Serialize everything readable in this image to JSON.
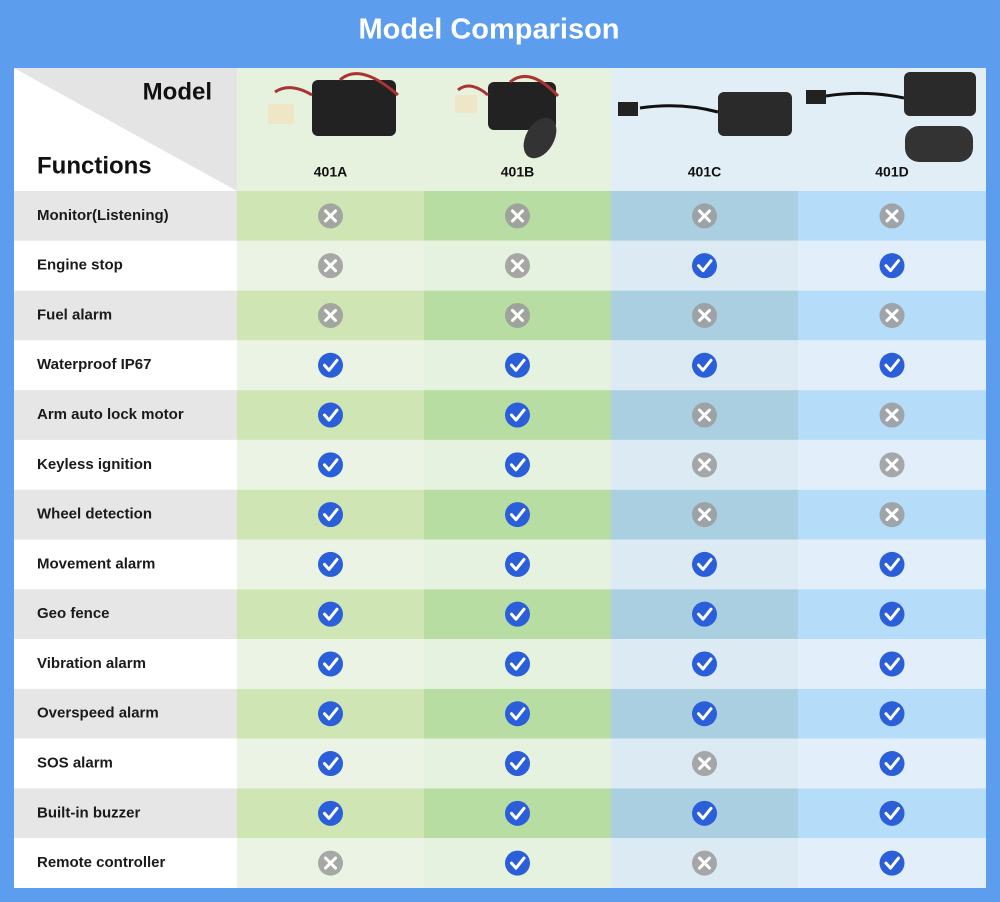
{
  "title": "Model Comparison",
  "header": {
    "model": "Model",
    "functions": "Functions"
  },
  "models": [
    "401A",
    "401B",
    "401C",
    "401D"
  ],
  "rows": [
    {
      "name": "Monitor(Listening)",
      "values": [
        false,
        false,
        false,
        false
      ]
    },
    {
      "name": "Engine stop",
      "values": [
        false,
        false,
        true,
        true
      ]
    },
    {
      "name": "Fuel alarm",
      "values": [
        false,
        false,
        false,
        false
      ]
    },
    {
      "name": "Waterproof IP67",
      "values": [
        true,
        true,
        true,
        true
      ]
    },
    {
      "name": "Arm auto lock motor",
      "values": [
        true,
        true,
        false,
        false
      ]
    },
    {
      "name": "Keyless ignition",
      "values": [
        true,
        true,
        false,
        false
      ]
    },
    {
      "name": "Wheel detection",
      "values": [
        true,
        true,
        false,
        false
      ]
    },
    {
      "name": "Movement alarm",
      "values": [
        true,
        true,
        true,
        true
      ]
    },
    {
      "name": "Geo fence",
      "values": [
        true,
        true,
        true,
        true
      ]
    },
    {
      "name": "Vibration alarm",
      "values": [
        true,
        true,
        true,
        true
      ]
    },
    {
      "name": "Overspeed alarm",
      "values": [
        true,
        true,
        true,
        true
      ]
    },
    {
      "name": "SOS alarm",
      "values": [
        true,
        true,
        false,
        true
      ]
    },
    {
      "name": "Built-in buzzer",
      "values": [
        true,
        true,
        true,
        true
      ]
    },
    {
      "name": "Remote controller",
      "values": [
        false,
        true,
        false,
        true
      ]
    }
  ]
}
